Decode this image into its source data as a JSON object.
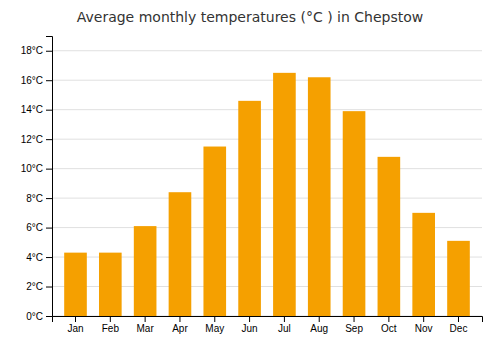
{
  "chart_data": {
    "type": "bar",
    "title": "Average monthly temperatures (°C ) in Chepstow",
    "categories": [
      "Jan",
      "Feb",
      "Mar",
      "Apr",
      "May",
      "Jun",
      "Jul",
      "Aug",
      "Sep",
      "Oct",
      "Nov",
      "Dec"
    ],
    "values": [
      4.3,
      4.3,
      6.1,
      8.4,
      11.5,
      14.6,
      16.5,
      16.2,
      13.9,
      10.8,
      7.0,
      5.1
    ],
    "color": "#F5A000",
    "ylim": [
      0,
      19
    ],
    "yticks": [
      {
        "value": 0,
        "label": "0°C"
      },
      {
        "value": 2,
        "label": "2°C"
      },
      {
        "value": 4,
        "label": "4°C"
      },
      {
        "value": 6,
        "label": "6°C"
      },
      {
        "value": 8,
        "label": "8°C"
      },
      {
        "value": 10,
        "label": "10°C"
      },
      {
        "value": 12,
        "label": "12°C"
      },
      {
        "value": 14,
        "label": "14°C"
      },
      {
        "value": 16,
        "label": "16°C"
      },
      {
        "value": 18,
        "label": "18°C"
      }
    ],
    "grid": true
  }
}
